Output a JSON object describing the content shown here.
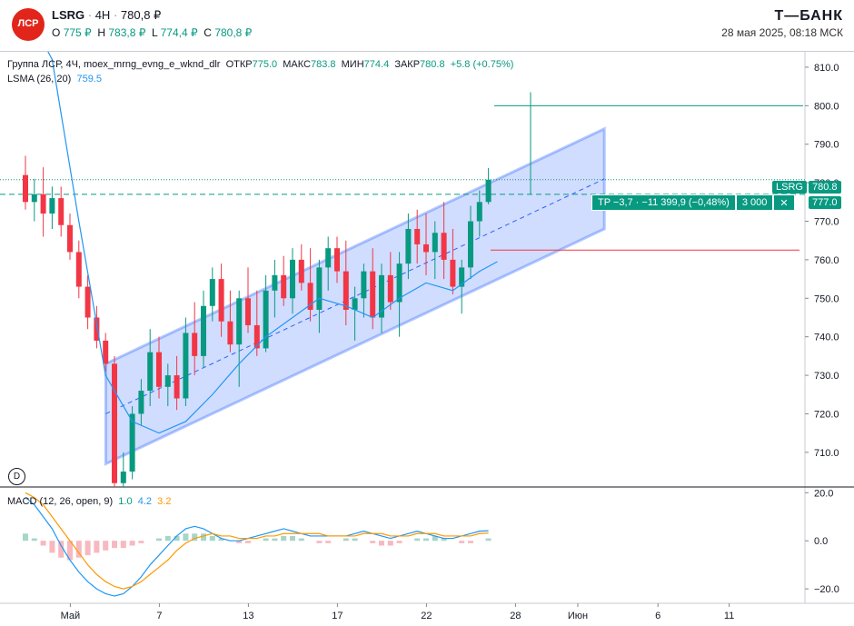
{
  "header": {
    "logo_text": "ЛСР",
    "symbol": "LSRG",
    "interval": "4H",
    "last": "780,8 ₽",
    "ohlc": [
      {
        "k": "O",
        "v": "775 ₽"
      },
      {
        "k": "H",
        "v": "783,8 ₽"
      },
      {
        "k": "L",
        "v": "774,4 ₽"
      },
      {
        "k": "C",
        "v": "780,8 ₽"
      }
    ],
    "brand": "Т—БАНК",
    "datetime": "28 мая 2025, 08:18 МСК"
  },
  "legend": {
    "title": "Группа ЛСР, 4Ч, moex_mrng_evng_e_wknd_dlr",
    "items": [
      {
        "k": "ОТКР",
        "v": "775.0"
      },
      {
        "k": "МАКС",
        "v": "783.8"
      },
      {
        "k": "МИН",
        "v": "774.4"
      },
      {
        "k": "ЗАКР",
        "v": "780.8"
      }
    ],
    "change": "+5.8 (+0.75%)",
    "lsma_label": "LSMA (26, 20)",
    "lsma_value": "759.5",
    "macd_label": "MACD (12, 26, open, 9)",
    "macd_values": [
      "1.0",
      "4.2",
      "3.2"
    ]
  },
  "labels": {
    "price_tag_symbol": "LSRG",
    "price_tag_value": "780.8",
    "tp_value": "777.0",
    "tp_text": "TP −3,7 · −11 399,9 (−0,48%)",
    "tp_qty": "3 000",
    "tp_close": "✕",
    "d_button": "D"
  },
  "colors": {
    "up": "#089981",
    "down": "#f23645",
    "channel": "#2962ff",
    "lsma": "#2196f3",
    "signal": "#ff9800"
  },
  "chart_data": [
    {
      "type": "candlestick",
      "yaxis": {
        "ticks": [
          710,
          720,
          730,
          740,
          750,
          760,
          770,
          780,
          790,
          800,
          810
        ],
        "range": [
          701,
          814
        ]
      },
      "xaxis": {
        "labels": [
          {
            "t": "Май",
            "i": 3
          },
          {
            "t": "7",
            "i": 13
          },
          {
            "t": "13",
            "i": 23
          },
          {
            "t": "17",
            "i": 33
          },
          {
            "t": "22",
            "i": 43
          },
          {
            "t": "28",
            "i": 53
          },
          {
            "t": "Июн",
            "i": 60
          },
          {
            "t": "6",
            "i": 69
          },
          {
            "t": "11",
            "i": 77
          }
        ]
      },
      "candles": [
        [
          782,
          787,
          773,
          775
        ],
        [
          775,
          781,
          770,
          777
        ],
        [
          777,
          784,
          766,
          772
        ],
        [
          772,
          779,
          768,
          776
        ],
        [
          776,
          779,
          766,
          769
        ],
        [
          769,
          772,
          760,
          762
        ],
        [
          762,
          765,
          750,
          753
        ],
        [
          753,
          756,
          742,
          745
        ],
        [
          745,
          748,
          737,
          739
        ],
        [
          739,
          741,
          731,
          733
        ],
        [
          733,
          735,
          700,
          702
        ],
        [
          702,
          710,
          699,
          705
        ],
        [
          705,
          722,
          703,
          720
        ],
        [
          720,
          729,
          717,
          726
        ],
        [
          726,
          742,
          722,
          736
        ],
        [
          736,
          740,
          724,
          727
        ],
        [
          727,
          733,
          722,
          730
        ],
        [
          730,
          735,
          721,
          724
        ],
        [
          724,
          745,
          722,
          741
        ],
        [
          741,
          749,
          730,
          735
        ],
        [
          735,
          752,
          732,
          748
        ],
        [
          748,
          758,
          744,
          755
        ],
        [
          755,
          759,
          740,
          744
        ],
        [
          744,
          752,
          736,
          738
        ],
        [
          738,
          752,
          727,
          750
        ],
        [
          750,
          758,
          741,
          743
        ],
        [
          743,
          752,
          735,
          737
        ],
        [
          737,
          756,
          736,
          752
        ],
        [
          752,
          760,
          745,
          756
        ],
        [
          756,
          761,
          748,
          750
        ],
        [
          750,
          763,
          746,
          760
        ],
        [
          760,
          764,
          752,
          754
        ],
        [
          754,
          763,
          744,
          747
        ],
        [
          747,
          760,
          741,
          758
        ],
        [
          758,
          766,
          752,
          763
        ],
        [
          763,
          766,
          754,
          757
        ],
        [
          757,
          765,
          743,
          747
        ],
        [
          747,
          753,
          739,
          750
        ],
        [
          750,
          759,
          745,
          757
        ],
        [
          757,
          763,
          742,
          745
        ],
        [
          745,
          759,
          741,
          756
        ],
        [
          756,
          762,
          747,
          749
        ],
        [
          749,
          762,
          740,
          759
        ],
        [
          759,
          772,
          755,
          768
        ],
        [
          768,
          773,
          759,
          764
        ],
        [
          764,
          772,
          756,
          762
        ],
        [
          762,
          770,
          755,
          767
        ],
        [
          767,
          775,
          755,
          760
        ],
        [
          760,
          768,
          751,
          753
        ],
        [
          753,
          760,
          746,
          758
        ],
        [
          758,
          774,
          755,
          770
        ],
        [
          770,
          778,
          766,
          775
        ],
        [
          775,
          783.8,
          774.4,
          780.8
        ]
      ],
      "lsma": [
        {
          "i": 0,
          "v": 825
        },
        {
          "i": 3,
          "v": 812
        },
        {
          "i": 6,
          "v": 770
        },
        {
          "i": 9,
          "v": 730
        },
        {
          "i": 12,
          "v": 718
        },
        {
          "i": 15,
          "v": 715
        },
        {
          "i": 18,
          "v": 718
        },
        {
          "i": 21,
          "v": 725
        },
        {
          "i": 24,
          "v": 733
        },
        {
          "i": 27,
          "v": 740
        },
        {
          "i": 30,
          "v": 745
        },
        {
          "i": 33,
          "v": 750
        },
        {
          "i": 36,
          "v": 748
        },
        {
          "i": 39,
          "v": 745
        },
        {
          "i": 42,
          "v": 750
        },
        {
          "i": 45,
          "v": 754
        },
        {
          "i": 48,
          "v": 752
        },
        {
          "i": 51,
          "v": 757
        },
        {
          "i": 53,
          "v": 759.5
        }
      ],
      "channel": {
        "start_i": 8,
        "end_i": 64,
        "mid_start": 720,
        "mid_end": 781,
        "width": 13
      },
      "levels": {
        "resistance": 800,
        "support": 762.5,
        "tp": 777.0,
        "last": 780.8
      }
    },
    {
      "type": "macd",
      "yaxis": {
        "ticks": [
          20,
          0,
          -20
        ],
        "range": [
          -26,
          22
        ]
      },
      "hist": [
        3,
        1,
        -2,
        -5,
        -7,
        -8,
        -7,
        -6,
        -5,
        -4,
        -3,
        -3,
        -2,
        -1,
        0,
        1,
        2,
        2,
        3,
        3,
        3,
        2,
        1,
        0,
        -1,
        -1,
        0,
        1,
        1,
        2,
        2,
        1,
        0,
        -1,
        -1,
        0,
        1,
        1,
        0,
        -1,
        -2,
        -2,
        -1,
        0,
        1,
        1,
        2,
        1,
        0,
        -1,
        -1,
        0,
        1
      ],
      "macd": [
        18,
        15,
        10,
        5,
        -2,
        -8,
        -13,
        -17,
        -20,
        -22,
        -23,
        -22,
        -19,
        -15,
        -10,
        -6,
        -2,
        2,
        5,
        6,
        5,
        3,
        1,
        0,
        0,
        1,
        2,
        3,
        4,
        5,
        4,
        3,
        2,
        2,
        2,
        2,
        2,
        3,
        4,
        3,
        2,
        1,
        2,
        3,
        4,
        3,
        2,
        1,
        1,
        2,
        3,
        4,
        4.2
      ],
      "signal": [
        20,
        18,
        15,
        10,
        5,
        0,
        -5,
        -10,
        -14,
        -17,
        -19,
        -20,
        -19,
        -17,
        -14,
        -11,
        -8,
        -4,
        -1,
        1,
        2,
        3,
        2,
        2,
        1,
        1,
        1,
        2,
        2,
        3,
        3,
        3,
        3,
        3,
        2,
        2,
        2,
        2,
        3,
        3,
        3,
        2,
        2,
        2,
        3,
        3,
        3,
        2,
        2,
        2,
        2,
        3,
        3.2
      ]
    }
  ]
}
